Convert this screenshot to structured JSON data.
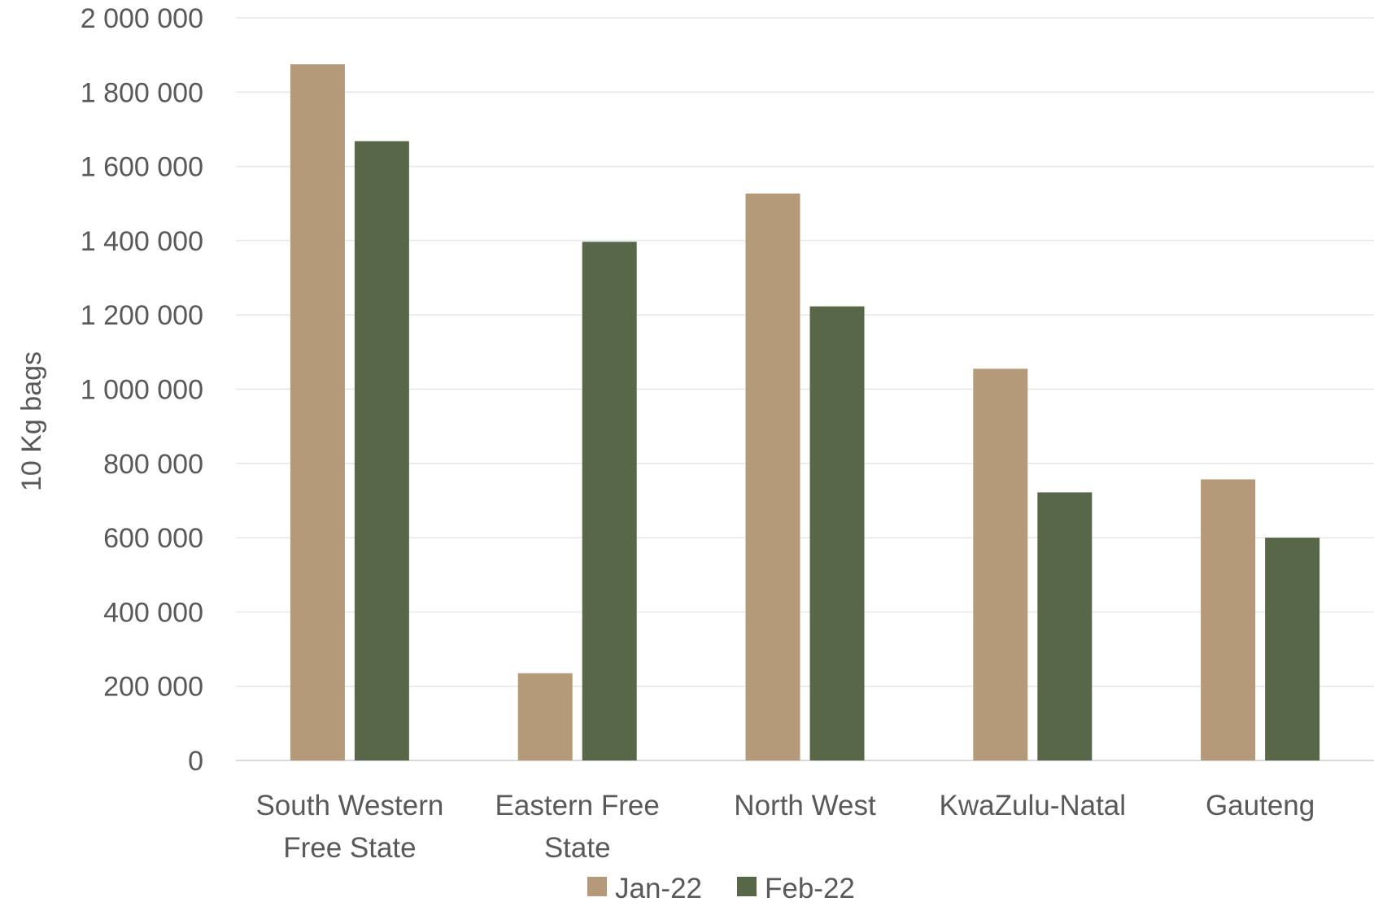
{
  "chart_data": {
    "type": "bar",
    "title": "",
    "xlabel": "",
    "ylabel": "10 Kg bags",
    "ylim": [
      0,
      2000000
    ],
    "yticks": [
      0,
      200000,
      400000,
      600000,
      800000,
      1000000,
      1200000,
      1400000,
      1600000,
      1800000,
      2000000
    ],
    "ytick_labels": [
      "0",
      "200 000",
      "400 000",
      "600 000",
      "800 000",
      "1 000 000",
      "1 200 000",
      "1 400 000",
      "1 600 000",
      "1 800 000",
      "2 000 000"
    ],
    "grid": true,
    "legend_position": "bottom",
    "categories": [
      [
        "South Western",
        "Free State"
      ],
      [
        "Eastern Free",
        "State"
      ],
      [
        "North West"
      ],
      [
        "KwaZulu-Natal"
      ],
      [
        "Gauteng"
      ]
    ],
    "series": [
      {
        "name": "Jan-22",
        "color": "#b49a78",
        "values": [
          1875000,
          235000,
          1527000,
          1055000,
          757000
        ]
      },
      {
        "name": "Feb-22",
        "color": "#576747",
        "values": [
          1668000,
          1397000,
          1223000,
          722000,
          600000
        ]
      }
    ]
  }
}
